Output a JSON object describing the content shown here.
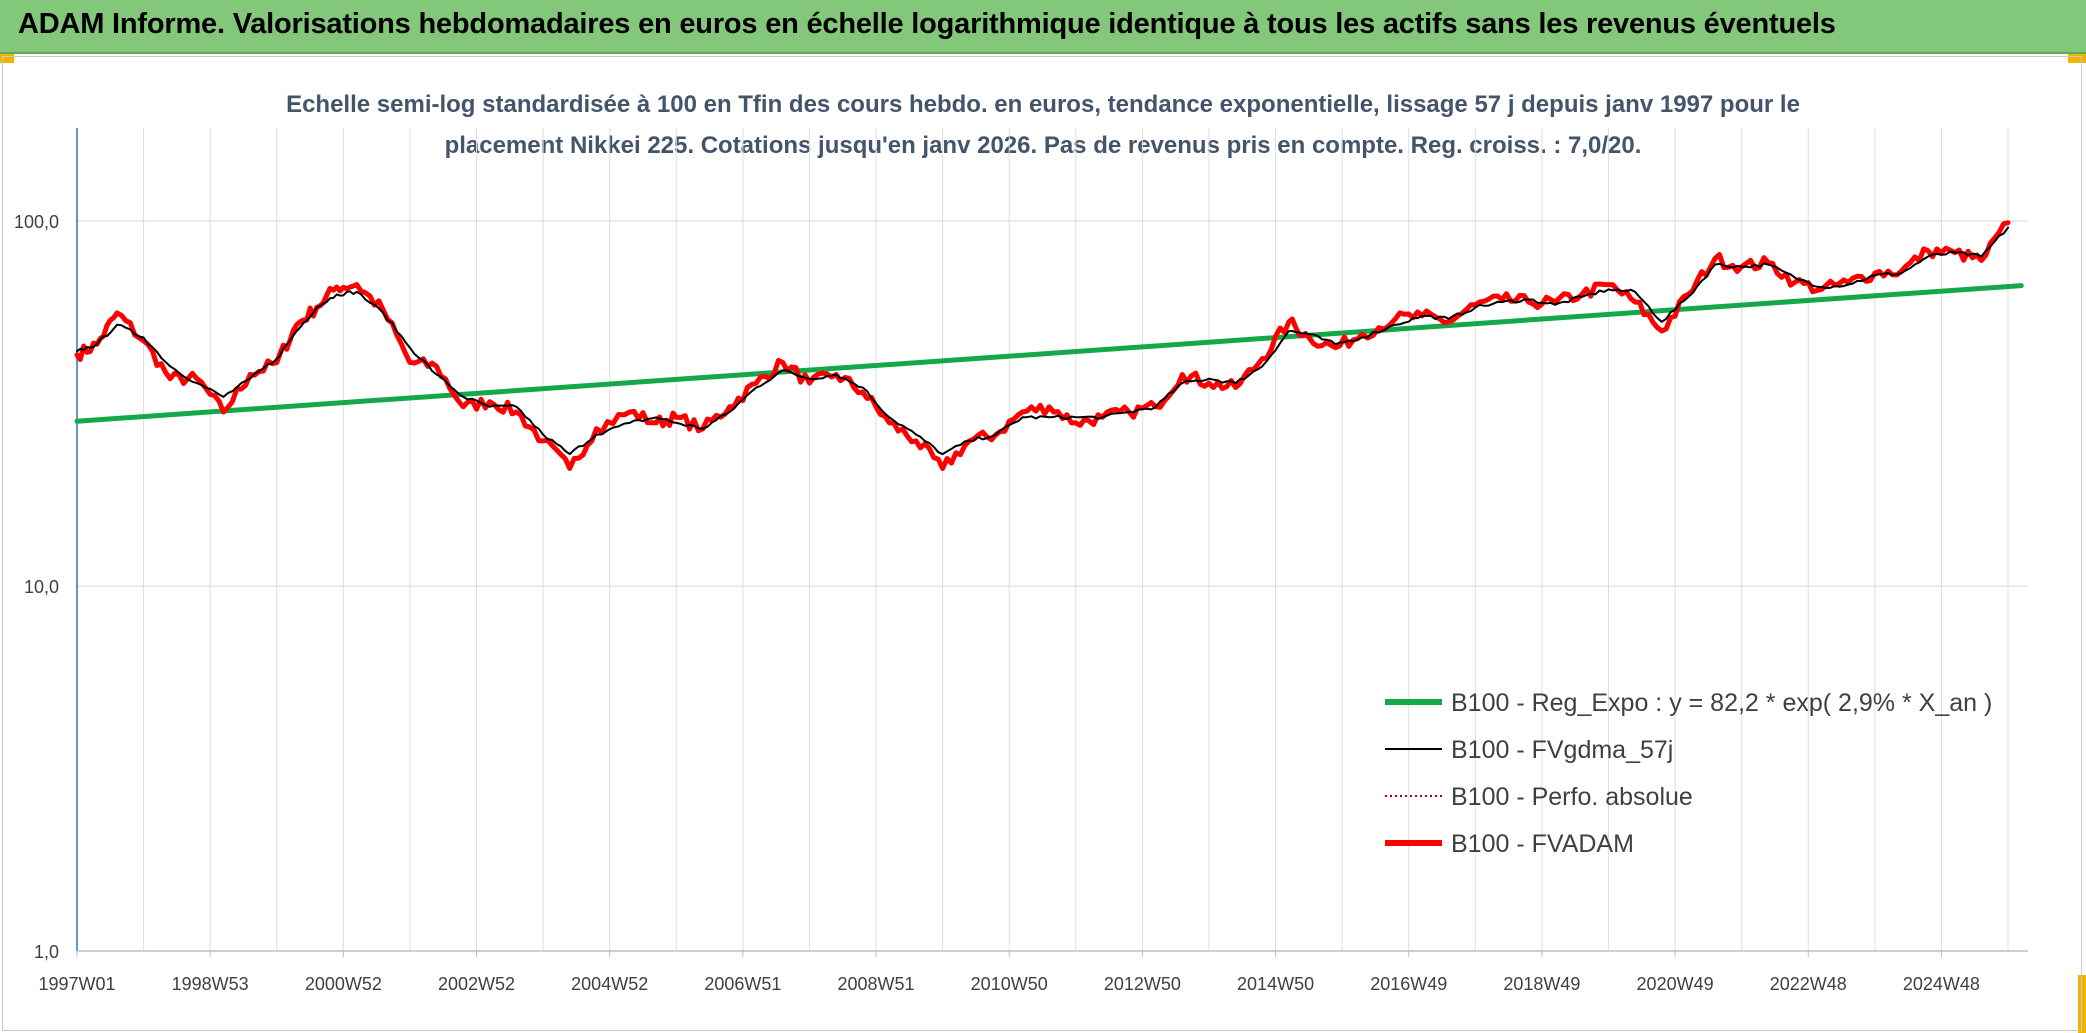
{
  "banner": {
    "title": "ADAM Informe. Valorisations hebdomadaires en euros en échelle logarithmique identique à tous les actifs sans les revenus éventuels",
    "background": "#82c77a",
    "corner_color": "#f0b400"
  },
  "chart_data": {
    "type": "line",
    "title_lines": [
      "Echelle semi-log standardisée à 100 en Tfin des cours hebdo. en euros, tendance exponentielle, lissage 57 j depuis janv 1997 pour le",
      "placement Nikkei 225. Cotations jusqu'en janv 2026. Pas de revenus pris en compte. Reg. croiss. : 7,0/20."
    ],
    "xlabel": "",
    "ylabel": "",
    "y_scale": "log",
    "ylim": [
      1,
      180
    ],
    "xlim": [
      1997.0,
      2026.3
    ],
    "y_ticks": [
      {
        "value": 1,
        "label": "1,0"
      },
      {
        "value": 10,
        "label": "10,0"
      },
      {
        "value": 100,
        "label": "100,0"
      }
    ],
    "x_ticks": [
      {
        "t": 1997.0,
        "label": "1997W01"
      },
      {
        "t": 1999.0,
        "label": "1998W53"
      },
      {
        "t": 2001.0,
        "label": "2000W52"
      },
      {
        "t": 2003.0,
        "label": "2002W52"
      },
      {
        "t": 2005.0,
        "label": "2004W52"
      },
      {
        "t": 2007.0,
        "label": "2006W51"
      },
      {
        "t": 2009.0,
        "label": "2008W51"
      },
      {
        "t": 2011.0,
        "label": "2010W50"
      },
      {
        "t": 2013.0,
        "label": "2012W50"
      },
      {
        "t": 2015.0,
        "label": "2014W50"
      },
      {
        "t": 2017.0,
        "label": "2016W49"
      },
      {
        "t": 2019.0,
        "label": "2018W49"
      },
      {
        "t": 2021.0,
        "label": "2020W49"
      },
      {
        "t": 2023.0,
        "label": "2022W48"
      },
      {
        "t": 2025.0,
        "label": "2024W48"
      }
    ],
    "grid": true,
    "legend_position": "bottom-right",
    "series": [
      {
        "name": "B100 - Reg_Expo : y = 82,2 * exp( 2,9% *  X_an )",
        "color": "#14a84b",
        "style": "solid-thick",
        "x": [
          1997.0,
          2026.2
        ],
        "y": [
          28.3,
          66.6
        ]
      },
      {
        "name": "B100 - FVgdma_57j",
        "color": "#000000",
        "style": "solid-thin",
        "x": [
          1997.0,
          1997.3,
          1997.6,
          1998.0,
          1998.4,
          1998.8,
          1999.2,
          1999.6,
          2000.0,
          2000.3,
          2000.6,
          2000.9,
          2001.2,
          2001.6,
          2002.0,
          2002.4,
          2002.8,
          2003.2,
          2003.6,
          2004.0,
          2004.4,
          2004.8,
          2005.3,
          2005.7,
          2006.0,
          2006.4,
          2006.8,
          2007.2,
          2007.6,
          2008.0,
          2008.4,
          2008.8,
          2009.2,
          2009.6,
          2010.0,
          2010.4,
          2010.8,
          2011.2,
          2011.6,
          2012.0,
          2012.4,
          2012.8,
          2013.2,
          2013.6,
          2014.0,
          2014.4,
          2014.8,
          2015.2,
          2015.5,
          2015.9,
          2016.3,
          2016.8,
          2017.2,
          2017.6,
          2018.0,
          2018.4,
          2018.8,
          2019.2,
          2019.6,
          2020.0,
          2020.4,
          2020.8,
          2021.2,
          2021.6,
          2022.0,
          2022.4,
          2022.8,
          2023.2,
          2023.6,
          2024.0,
          2024.4,
          2024.8,
          2025.2,
          2025.6,
          2026.0
        ],
        "y": [
          44,
          46,
          52,
          48,
          40,
          36,
          33,
          37,
          42,
          50,
          58,
          63,
          64,
          56,
          45,
          38,
          33,
          31,
          31,
          26,
          23,
          26,
          28,
          29,
          28,
          27,
          30,
          35,
          39,
          37,
          38,
          35,
          29,
          26,
          23,
          25,
          26,
          29,
          29,
          29,
          29,
          30,
          31,
          36,
          37,
          36,
          40,
          50,
          49,
          46,
          48,
          52,
          55,
          54,
          58,
          60,
          61,
          59,
          62,
          65,
          64,
          53,
          62,
          76,
          75,
          76,
          70,
          66,
          67,
          71,
          72,
          80,
          82,
          80,
          96
        ]
      },
      {
        "name": "B100 - Perfo. absolue",
        "color": "#c00000",
        "style": "dotted",
        "x": [],
        "y": []
      },
      {
        "name": "B100 - FVADAM",
        "color": "#ff0000",
        "style": "solid-thick",
        "x": [
          1997.0,
          1997.3,
          1997.6,
          1998.0,
          1998.4,
          1998.8,
          1999.2,
          1999.6,
          2000.0,
          2000.3,
          2000.6,
          2000.9,
          2001.2,
          2001.6,
          2002.0,
          2002.4,
          2002.8,
          2003.2,
          2003.6,
          2004.0,
          2004.4,
          2004.8,
          2005.3,
          2005.7,
          2006.0,
          2006.4,
          2006.8,
          2007.2,
          2007.6,
          2008.0,
          2008.4,
          2008.8,
          2009.2,
          2009.6,
          2010.0,
          2010.4,
          2010.8,
          2011.2,
          2011.6,
          2012.0,
          2012.4,
          2012.8,
          2013.2,
          2013.6,
          2014.0,
          2014.4,
          2014.8,
          2015.2,
          2015.5,
          2015.9,
          2016.3,
          2016.8,
          2017.2,
          2017.6,
          2018.0,
          2018.4,
          2018.8,
          2019.2,
          2019.6,
          2020.0,
          2020.4,
          2020.8,
          2021.2,
          2021.6,
          2022.0,
          2022.4,
          2022.8,
          2023.2,
          2023.6,
          2024.0,
          2024.4,
          2024.8,
          2025.2,
          2025.6,
          2026.0
        ],
        "y": [
          43,
          46,
          56,
          47,
          37,
          37,
          30,
          38,
          41,
          52,
          58,
          66,
          67,
          57,
          41,
          40,
          31,
          32,
          30,
          25,
          21,
          27,
          30,
          28,
          29,
          27,
          31,
          36,
          41,
          36,
          38,
          34,
          28,
          25,
          21,
          25,
          26,
          30,
          31,
          28,
          29,
          30,
          31,
          38,
          36,
          35,
          42,
          53,
          48,
          45,
          49,
          54,
          55,
          53,
          59,
          61,
          60,
          60,
          63,
          67,
          60,
          50,
          63,
          79,
          75,
          77,
          68,
          65,
          68,
          72,
          73,
          83,
          82,
          78,
          99
        ]
      }
    ]
  }
}
